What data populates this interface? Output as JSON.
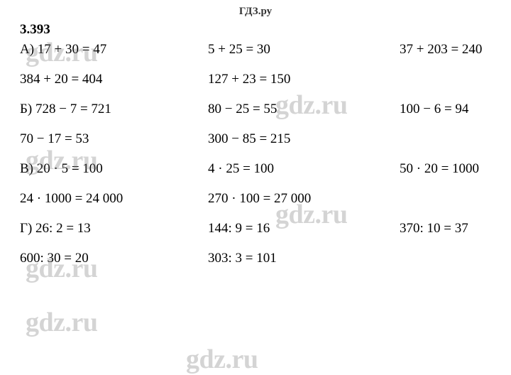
{
  "header": "ГДЗ.ру",
  "problem_number": "3.393",
  "watermark": "gdz.ru",
  "rows": [
    {
      "c1": "А) 17 + 30 = 47",
      "c2": "5 + 25 = 30",
      "c3": "37 + 203 = 240"
    },
    {
      "c1": "384 + 20 = 404",
      "c2": "127 + 23 = 150",
      "c3": ""
    },
    {
      "c1": "Б) 728 − 7 = 721",
      "c2": "80 − 25 = 55",
      "c3": "100 − 6 = 94"
    },
    {
      "c1": "70 − 17 = 53",
      "c2": "300 − 85 = 215",
      "c3": ""
    },
    {
      "c1": "В) 20 · 5 = 100",
      "c2": "4 · 25 = 100",
      "c3": "50 · 20 = 1000"
    },
    {
      "c1": "24 · 1000 = 24 000",
      "c2": "270 · 100 = 27 000",
      "c3": ""
    },
    {
      "c1": "Г) 26: 2 = 13",
      "c2": "144: 9 = 16",
      "c3": "370: 10 = 37"
    },
    {
      "c1": "600: 30 = 20",
      "c2": "303: 3 = 101",
      "c3": ""
    }
  ],
  "style": {
    "background_color": "#ffffff",
    "text_color": "#000000",
    "header_color": "#333333",
    "watermark_color": "rgba(120,120,120,0.32)",
    "font_size_body": 19,
    "font_size_header": 15,
    "font_size_watermark": 38
  }
}
